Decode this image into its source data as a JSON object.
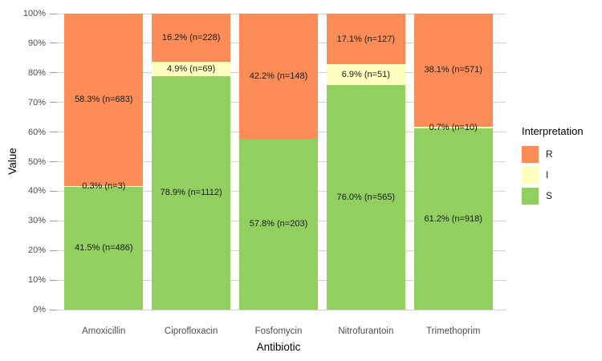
{
  "chart_data": {
    "type": "bar",
    "stacked": true,
    "title": "",
    "xlabel": "Antibiotic",
    "ylabel": "Value",
    "categories": [
      "Amoxicillin",
      "Ciprofloxacin",
      "Fosfomycin",
      "Nitrofurantoin",
      "Trimethoprim"
    ],
    "series": [
      {
        "name": "R",
        "color": "#FC8D59",
        "values": [
          58.3,
          16.2,
          42.2,
          17.1,
          38.1
        ],
        "counts": [
          683,
          228,
          148,
          127,
          571
        ],
        "labels": [
          "58.3% (n=683)",
          "16.2% (n=228)",
          "42.2% (n=148)",
          "17.1% (n=127)",
          "38.1% (n=571)"
        ]
      },
      {
        "name": "I",
        "color": "#FFFFBF",
        "values": [
          0.3,
          4.9,
          0,
          6.9,
          0.7
        ],
        "counts": [
          3,
          69,
          0,
          51,
          10
        ],
        "labels": [
          "0.3% (n=3)",
          "4.9% (n=69)",
          null,
          "6.9% (n=51)",
          "0.7% (n=10)"
        ]
      },
      {
        "name": "S",
        "color": "#91CF60",
        "values": [
          41.5,
          78.9,
          57.8,
          76.0,
          61.2
        ],
        "counts": [
          486,
          1112,
          203,
          565,
          918
        ],
        "labels": [
          "41.5% (n=486)",
          "78.9% (n=1112)",
          "57.8% (n=203)",
          "76.0% (n=565)",
          "61.2% (n=918)"
        ]
      }
    ],
    "y_ticks": [
      "0%",
      "10%",
      "20%",
      "30%",
      "40%",
      "50%",
      "60%",
      "70%",
      "80%",
      "90%",
      "100%"
    ],
    "ylim": [
      0,
      100
    ],
    "grid": true,
    "legend": {
      "title": "Interpretation",
      "entries": [
        "R",
        "I",
        "S"
      ],
      "position": "right"
    }
  }
}
